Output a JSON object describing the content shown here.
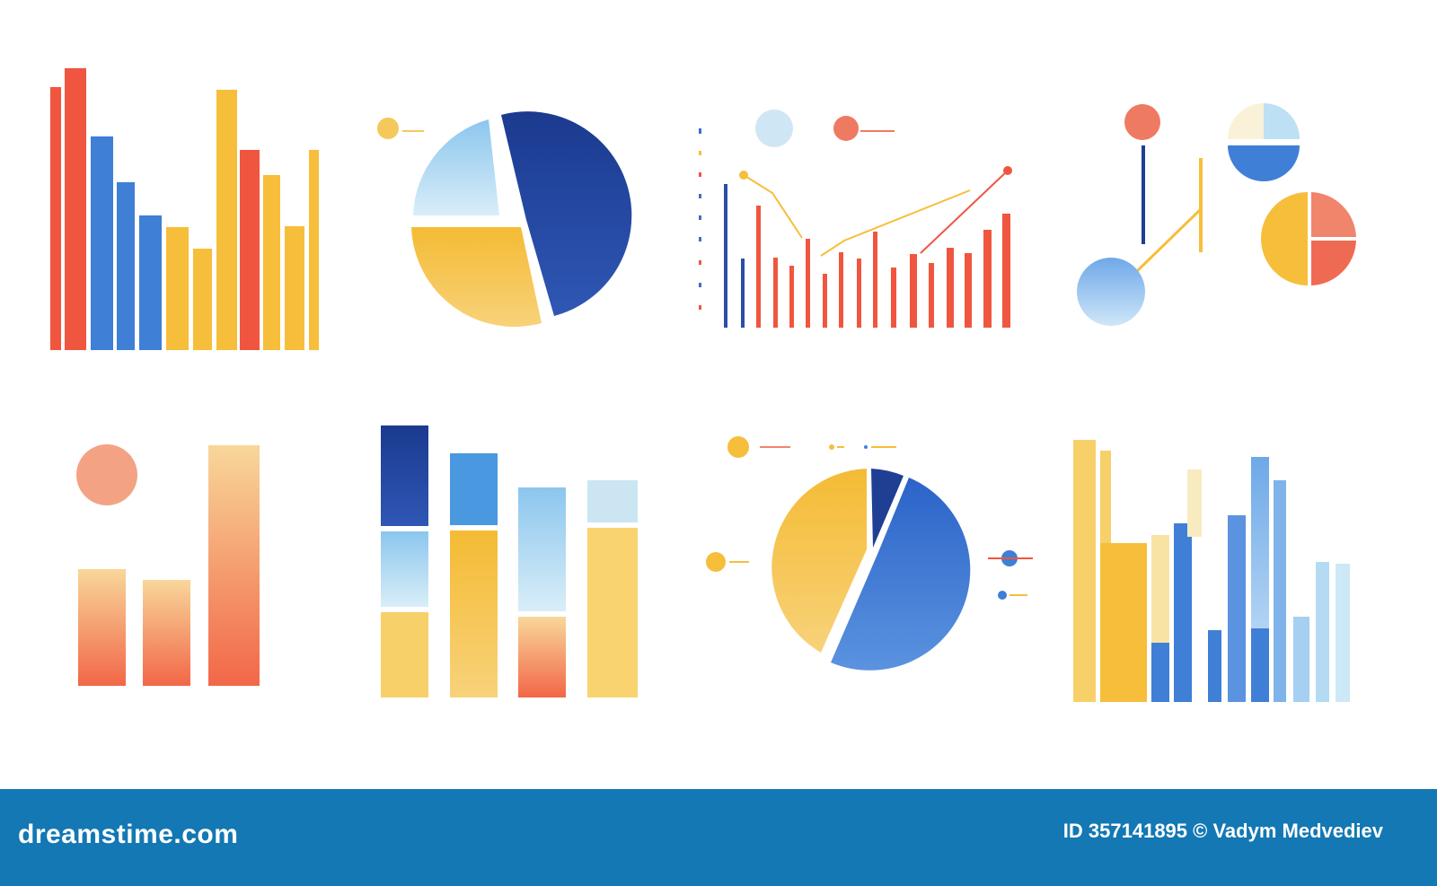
{
  "colors": {
    "red": "#f0563f",
    "blue": "#3f7fd6",
    "navy": "#1e3f94",
    "yellow": "#f6be3a",
    "lightblue": "#a9d6ef",
    "peach": "#f3a384",
    "footer": "#1378b3"
  },
  "footer": {
    "brand": "dreamstime.com",
    "credit": "ID 357141895 © Vadym Medvediev"
  },
  "watermark": "dreamstime"
}
